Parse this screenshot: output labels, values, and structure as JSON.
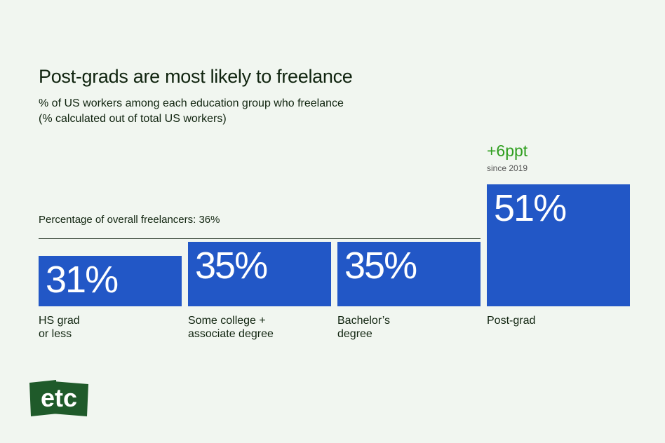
{
  "chart_data": {
    "type": "bar",
    "title": "Post-grads are most likely to freelance",
    "subtitle": "% of US workers among each education group who freelance\n(% calculated out of total US workers)",
    "categories": [
      "HS grad\nor less",
      "Some college +\nassociate degree",
      "Bachelor’s\ndegree",
      "Post-grad"
    ],
    "values": [
      31,
      35,
      35,
      51
    ],
    "value_labels": [
      "31%",
      "35%",
      "35%",
      "51%"
    ],
    "color": "#2257c6",
    "ylim": [
      17,
      52
    ],
    "reference_line": {
      "value": 36,
      "label": "Percentage of overall freelancers: 36%"
    },
    "annotation": {
      "text": "+6ppt",
      "subtext": "since 2019"
    },
    "logo": "etc"
  }
}
